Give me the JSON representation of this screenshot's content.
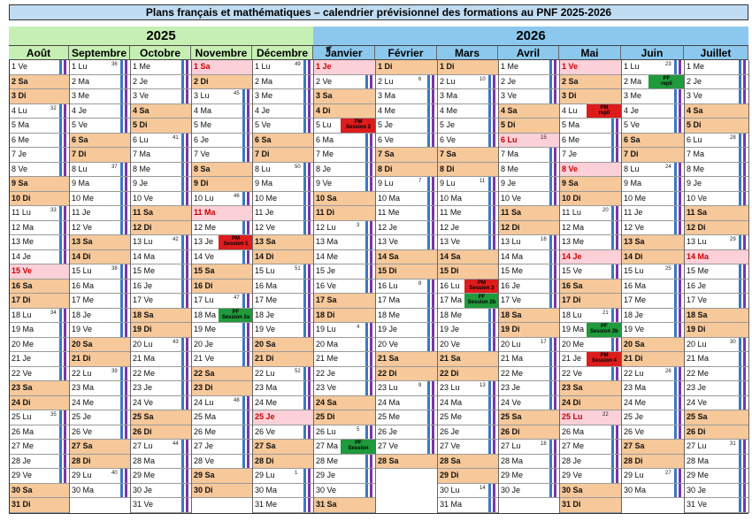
{
  "title": "Plans français et mathématiques – calendrier prévisionnel des formations au PNF 2025-2026",
  "years": {
    "y2025": "2025",
    "y2026": "2026"
  },
  "colors": {
    "weekend": "#f6c89a",
    "holiday_fill": "#fce3d0",
    "fr_school_holiday": "#fff9bf",
    "yellow": "#f9f250",
    "cyan_week": "#9eeaf0",
    "pink": "#fbd0d8",
    "violet": "#7c35a8",
    "blue_stripe": "#3a78c4",
    "pm": "#dd1c1c",
    "pf": "#1f9a3c"
  },
  "months": [
    {
      "name": "Août",
      "days": 31,
      "start": 5,
      "year": 2025
    },
    {
      "name": "Septembre",
      "days": 30,
      "start": 1,
      "year": 2025
    },
    {
      "name": "Octobre",
      "days": 31,
      "start": 3,
      "year": 2025
    },
    {
      "name": "Novembre",
      "days": 30,
      "start": 6,
      "year": 2025
    },
    {
      "name": "Décembre",
      "days": 31,
      "start": 1,
      "year": 2025
    },
    {
      "name": "Janvier",
      "days": 31,
      "start": 4,
      "year": 2026
    },
    {
      "name": "Février",
      "days": 28,
      "start": 0,
      "year": 2026
    },
    {
      "name": "Mars",
      "days": 31,
      "start": 0,
      "year": 2026
    },
    {
      "name": "Avril",
      "days": 30,
      "start": 3,
      "year": 2026
    },
    {
      "name": "Mai",
      "days": 31,
      "start": 5,
      "year": 2026
    },
    {
      "name": "Juin",
      "days": 30,
      "start": 1,
      "year": 2026
    },
    {
      "name": "Juillet",
      "days": 31,
      "start": 3,
      "year": 2026
    }
  ],
  "day_abbr": [
    "Di",
    "Lu",
    "Ma",
    "Me",
    "Je",
    "Ve",
    "Sa"
  ],
  "holidays": {
    "0": [
      15
    ],
    "3": [
      1,
      11
    ],
    "4": [
      25
    ],
    "5": [
      1
    ],
    "8": [
      6
    ],
    "9": [
      1,
      8,
      14,
      25
    ],
    "11": [
      14
    ]
  },
  "yellow_days": {
    "0": [],
    "2": [],
    "3": [],
    "6": [],
    "7": []
  },
  "events": [
    {
      "month": 3,
      "day": 13,
      "type": "pm",
      "l1": "PM",
      "l2": "Session 1"
    },
    {
      "month": 3,
      "day": 18,
      "type": "pf",
      "l1": "PF",
      "l2": "Session 2a"
    },
    {
      "month": 5,
      "day": 5,
      "type": "pm",
      "l1": "PM",
      "l2": "Session 2"
    },
    {
      "month": 5,
      "day": 27,
      "type": "pf",
      "l1": "PF",
      "l2": "Session"
    },
    {
      "month": 7,
      "day": 16,
      "type": "pm",
      "l1": "PM",
      "l2": "Session 3"
    },
    {
      "month": 7,
      "day": 17,
      "type": "pf",
      "l1": "PF",
      "l2": "Session 2b"
    },
    {
      "month": 9,
      "day": 19,
      "type": "pf",
      "l1": "PF",
      "l2": "Session 2b"
    },
    {
      "month": 9,
      "day": 21,
      "type": "pm",
      "l1": "PM",
      "l2": "Session 4"
    },
    {
      "month": 9,
      "day": 4,
      "type": "pm",
      "l1": "PM",
      "l2": "repli"
    },
    {
      "month": 10,
      "day": 2,
      "type": "pf",
      "l1": "PF",
      "l2": "repli"
    }
  ]
}
